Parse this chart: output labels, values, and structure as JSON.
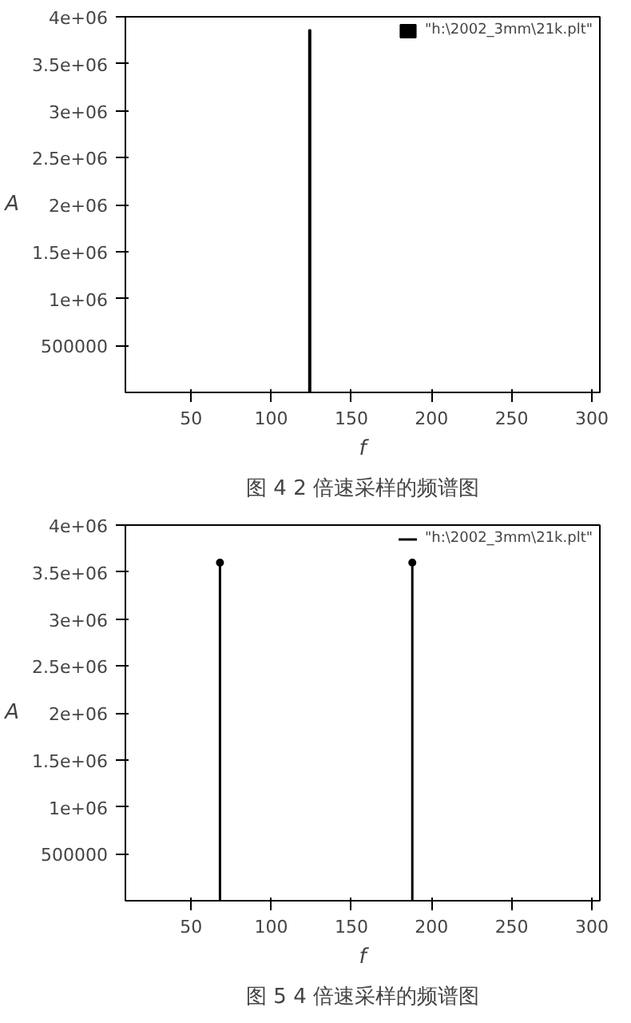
{
  "chart_data": [
    {
      "type": "bar",
      "title": "图 4 2 倍速采样的频谱图",
      "xlabel": "f",
      "ylabel": "A",
      "x": [
        124
      ],
      "series": [
        {
          "name": "\"h:\\2002_3mm\\21k.plt\"",
          "color": "#000000",
          "values": [
            3860000
          ]
        }
      ],
      "xlim": [
        9,
        305
      ],
      "ylim": [
        0,
        4000000
      ],
      "xticks": [
        50,
        100,
        150,
        200,
        250,
        300
      ],
      "yticks": [
        {
          "value": 500000,
          "label": "500000"
        },
        {
          "value": 1000000,
          "label": "1e+06"
        },
        {
          "value": 1500000,
          "label": "1.5e+06"
        },
        {
          "value": 2000000,
          "label": "2e+06"
        },
        {
          "value": 2500000,
          "label": "2.5e+06"
        },
        {
          "value": 3000000,
          "label": "3e+06"
        },
        {
          "value": 3500000,
          "label": "3.5e+06"
        },
        {
          "value": 4000000,
          "label": "4e+06"
        }
      ],
      "legend": "top right"
    },
    {
      "type": "lollipop",
      "title": "图 5 4 倍速采样的频谱图",
      "xlabel": "f",
      "ylabel": "A",
      "x": [
        68,
        188
      ],
      "series": [
        {
          "name": "\"h:\\2002_3mm\\21k.plt\"",
          "color": "#000000",
          "values": [
            3600000,
            3600000
          ]
        }
      ],
      "xlim": [
        9,
        305
      ],
      "ylim": [
        0,
        4000000
      ],
      "xticks": [
        50,
        100,
        150,
        200,
        250,
        300
      ],
      "yticks": [
        {
          "value": 500000,
          "label": "500000"
        },
        {
          "value": 1000000,
          "label": "1e+06"
        },
        {
          "value": 1500000,
          "label": "1.5e+06"
        },
        {
          "value": 2000000,
          "label": "2e+06"
        },
        {
          "value": 2500000,
          "label": "2.5e+06"
        },
        {
          "value": 3000000,
          "label": "3e+06"
        },
        {
          "value": 3500000,
          "label": "3.5e+06"
        },
        {
          "value": 4000000,
          "label": "4e+06"
        }
      ],
      "legend": "top right",
      "marker": "circle"
    }
  ]
}
